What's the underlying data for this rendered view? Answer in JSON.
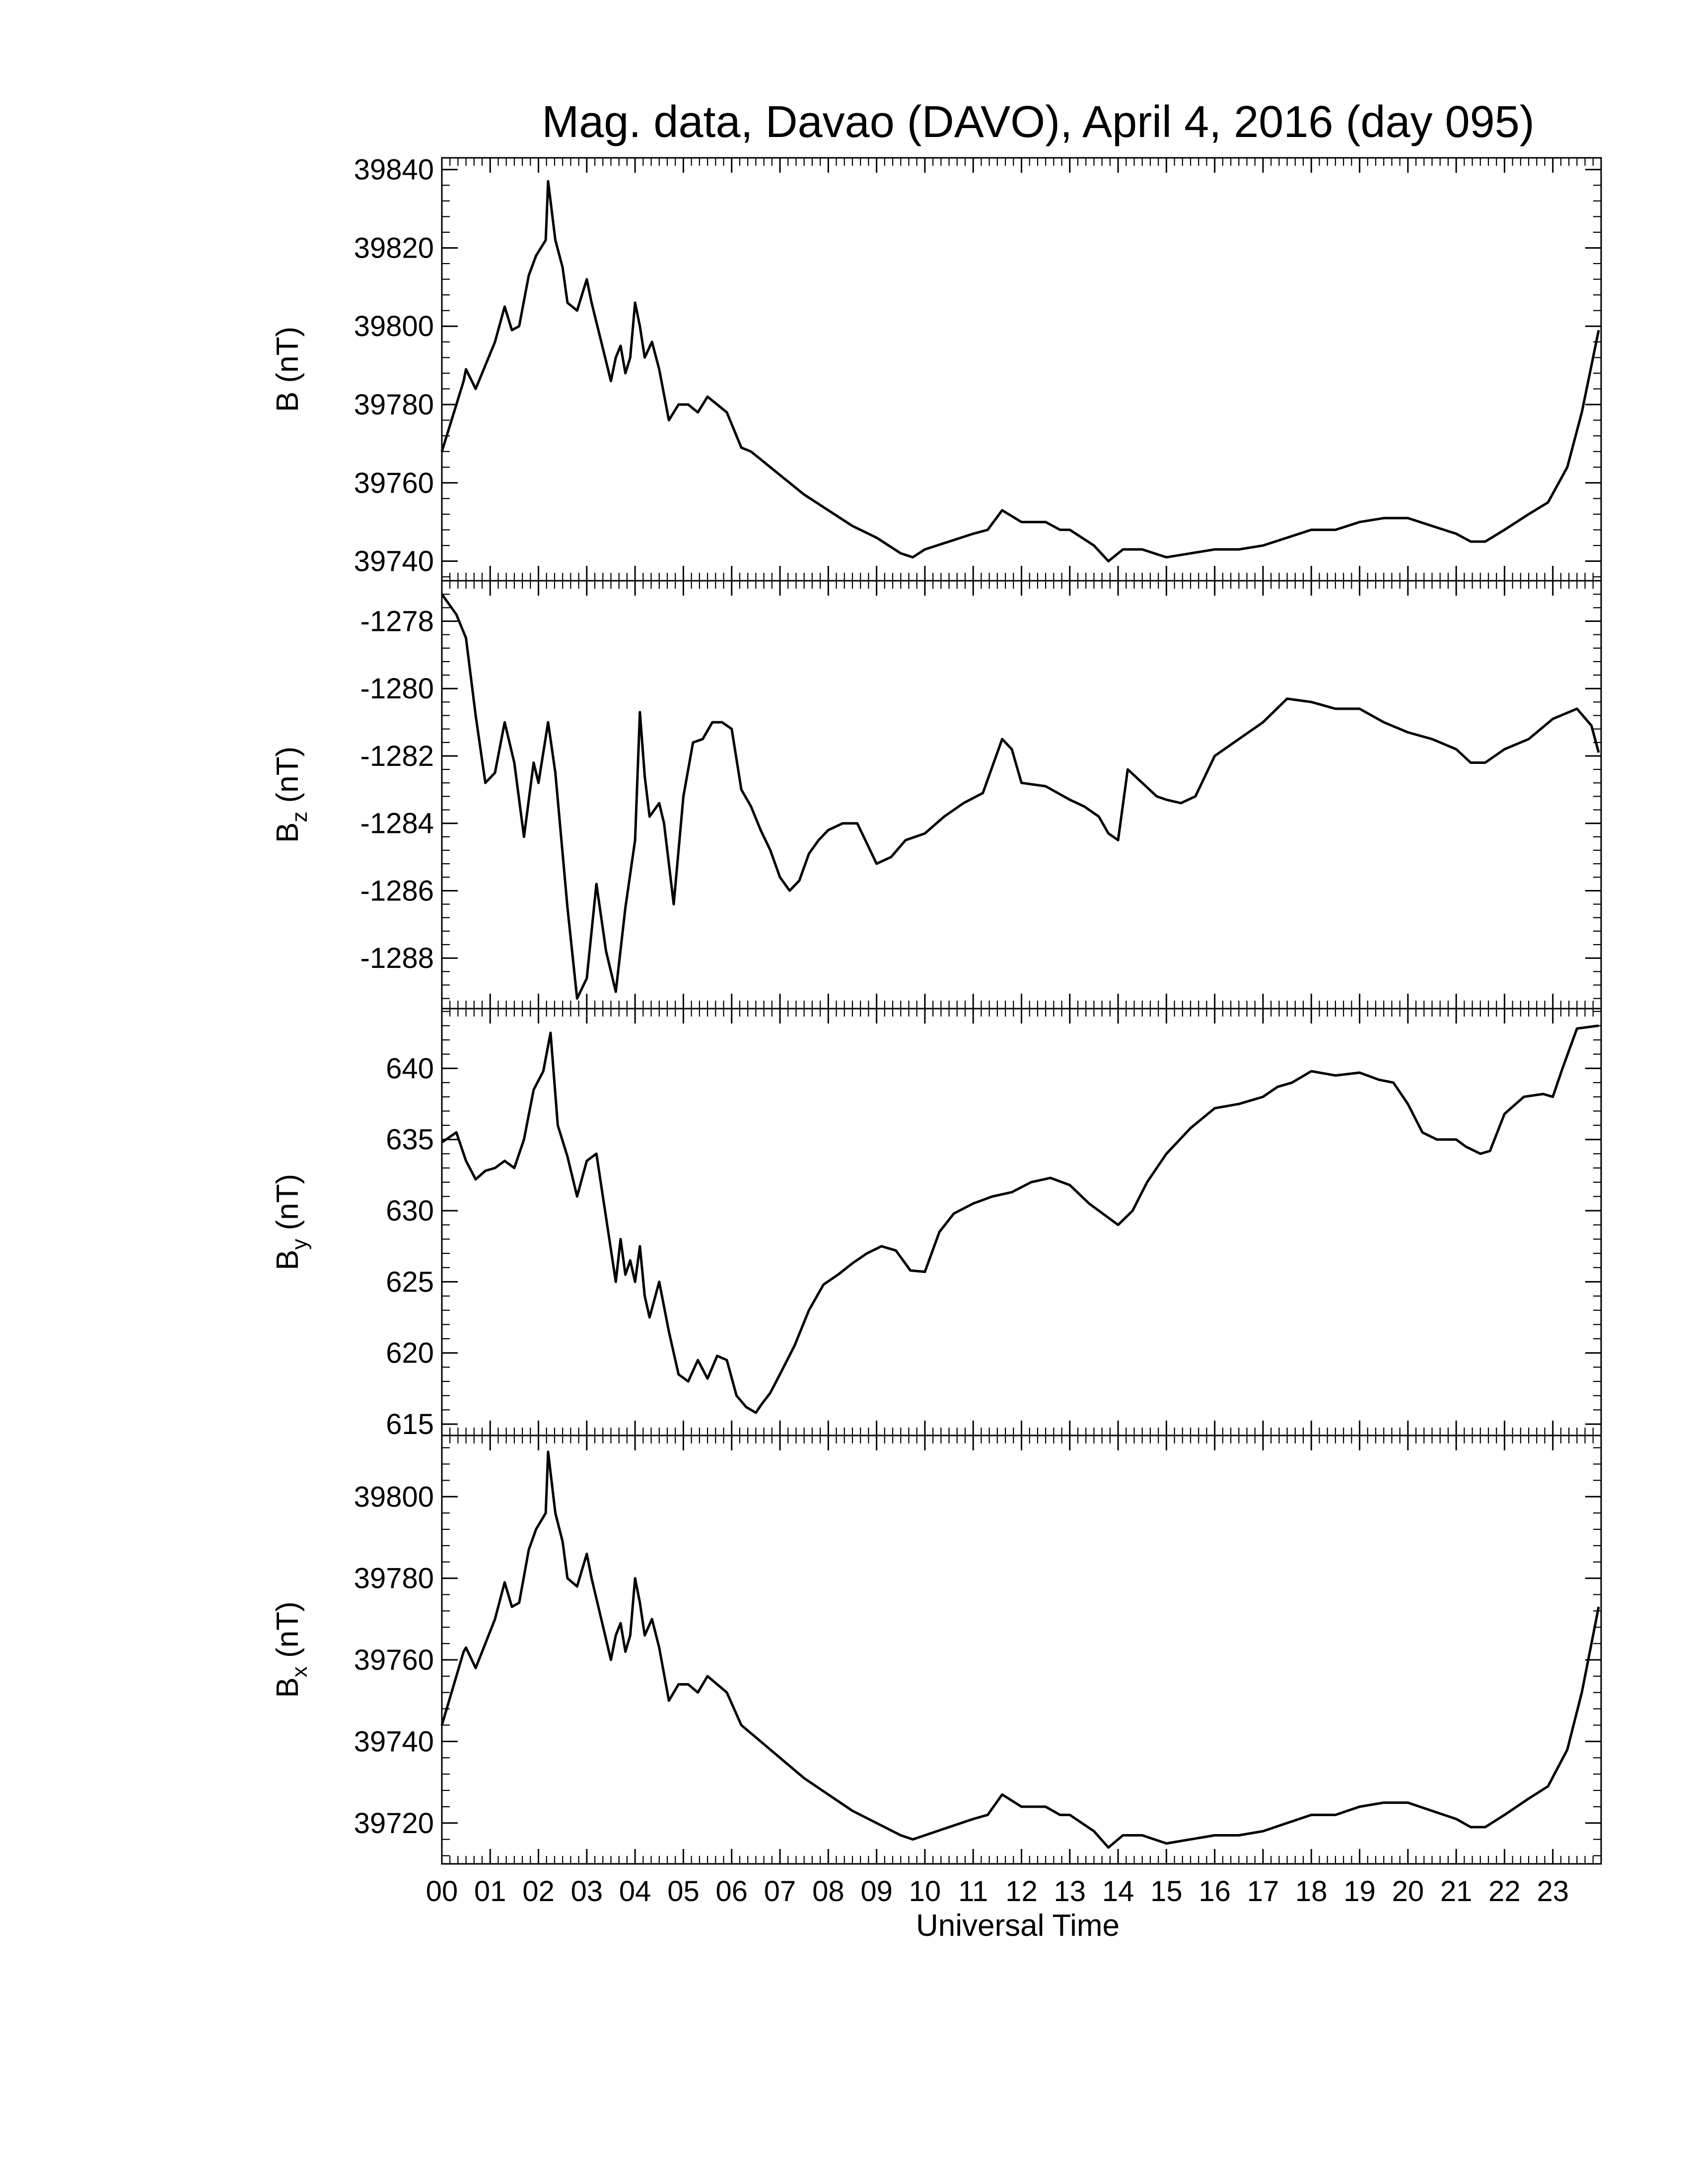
{
  "chart_data": {
    "type": "line",
    "title": "Mag. data, Davao (DAVO), April 4, 2016 (day 095)",
    "xlabel": "Universal Time",
    "x_ticks": [
      "00",
      "01",
      "02",
      "03",
      "04",
      "05",
      "06",
      "07",
      "08",
      "09",
      "10",
      "11",
      "12",
      "13",
      "14",
      "15",
      "16",
      "17",
      "18",
      "19",
      "20",
      "21",
      "22",
      "23"
    ],
    "xlim": [
      0,
      24
    ],
    "panels": [
      {
        "name": "B",
        "ylabel": "B (nT)",
        "ylabel_main": "B (nT)",
        "ylabel_sub": "",
        "ylabel_rest": "",
        "ylim": [
          39735,
          39843
        ],
        "y_ticks": [
          39740,
          39760,
          39780,
          39800,
          39820,
          39840
        ],
        "x": [
          0,
          0.2,
          0.45,
          0.5,
          0.7,
          0.9,
          1.1,
          1.3,
          1.45,
          1.6,
          1.8,
          1.95,
          2.15,
          2.2,
          2.35,
          2.5,
          2.6,
          2.8,
          3.0,
          3.1,
          3.3,
          3.5,
          3.6,
          3.7,
          3.8,
          3.9,
          4.0,
          4.1,
          4.2,
          4.35,
          4.5,
          4.7,
          4.9,
          5.1,
          5.3,
          5.5,
          5.7,
          5.9,
          6.2,
          6.4,
          6.6,
          7.0,
          7.5,
          8.0,
          8.5,
          9.0,
          9.5,
          9.75,
          10.0,
          10.5,
          11.0,
          11.3,
          11.6,
          12.0,
          12.5,
          12.8,
          13.0,
          13.5,
          13.8,
          14.1,
          14.5,
          15.0,
          15.5,
          16.0,
          16.5,
          17.0,
          17.5,
          18.0,
          18.5,
          19.0,
          19.5,
          20.0,
          20.5,
          21.0,
          21.3,
          21.6,
          22.0,
          22.5,
          22.9,
          23.3,
          23.6,
          23.95
        ],
        "y": [
          39768,
          39776,
          39786,
          39789,
          39784,
          39790,
          39796,
          39805,
          39799,
          39800,
          39813,
          39818,
          39822,
          39837,
          39822,
          39815,
          39806,
          39804,
          39812,
          39806,
          39796,
          39786,
          39792,
          39795,
          39788,
          39792,
          39806,
          39800,
          39792,
          39796,
          39789,
          39776,
          39780,
          39780,
          39778,
          39782,
          39780,
          39778,
          39769,
          39768,
          39766,
          39762,
          39757,
          39753,
          39749,
          39746,
          39742,
          39741,
          39743,
          39745,
          39747,
          39748,
          39753,
          39750,
          39750,
          39748,
          39748,
          39744,
          39740,
          39743,
          39743,
          39741,
          39742,
          39743,
          39743,
          39744,
          39746,
          39748,
          39748,
          39750,
          39751,
          39751,
          39749,
          39747,
          39745,
          39745,
          39748,
          39752,
          39755,
          39764,
          39778,
          39799
        ]
      },
      {
        "name": "Bz",
        "ylabel": "Bz (nT)",
        "ylabel_main": "B",
        "ylabel_sub": "z",
        "ylabel_rest": " (nT)",
        "ylim": [
          -1289.5,
          -1276.8
        ],
        "y_ticks": [
          -1278,
          -1280,
          -1282,
          -1284,
          -1286,
          -1288
        ],
        "x": [
          0,
          0.3,
          0.5,
          0.7,
          0.9,
          1.1,
          1.3,
          1.5,
          1.7,
          1.9,
          2.0,
          2.2,
          2.35,
          2.6,
          2.8,
          3.0,
          3.2,
          3.4,
          3.6,
          3.8,
          4.0,
          4.1,
          4.2,
          4.3,
          4.5,
          4.6,
          4.8,
          5.0,
          5.2,
          5.4,
          5.6,
          5.8,
          6.0,
          6.2,
          6.4,
          6.6,
          6.8,
          7.0,
          7.2,
          7.4,
          7.6,
          7.8,
          8.0,
          8.3,
          8.6,
          9.0,
          9.3,
          9.6,
          10.0,
          10.4,
          10.8,
          11.2,
          11.6,
          11.8,
          12.0,
          12.5,
          13.0,
          13.3,
          13.6,
          13.8,
          14.0,
          14.2,
          14.5,
          14.8,
          15.0,
          15.3,
          15.6,
          16.0,
          16.5,
          17.0,
          17.5,
          18.0,
          18.5,
          19.0,
          19.5,
          20.0,
          20.5,
          21.0,
          21.3,
          21.6,
          22.0,
          22.5,
          23.0,
          23.5,
          23.8,
          23.95
        ],
        "y": [
          -1277.2,
          -1277.8,
          -1278.5,
          -1280.8,
          -1282.8,
          -1282.5,
          -1281.0,
          -1282.2,
          -1284.4,
          -1282.2,
          -1282.8,
          -1281.0,
          -1282.5,
          -1286.5,
          -1289.2,
          -1288.6,
          -1285.8,
          -1287.8,
          -1289.0,
          -1286.5,
          -1284.5,
          -1280.7,
          -1282.6,
          -1283.8,
          -1283.4,
          -1284.0,
          -1286.4,
          -1283.2,
          -1281.6,
          -1281.5,
          -1281.0,
          -1281.0,
          -1281.2,
          -1283.0,
          -1283.5,
          -1284.2,
          -1284.8,
          -1285.6,
          -1286.0,
          -1285.7,
          -1284.9,
          -1284.5,
          -1284.2,
          -1284.0,
          -1284.0,
          -1285.2,
          -1285.0,
          -1284.5,
          -1284.3,
          -1283.8,
          -1283.4,
          -1283.1,
          -1281.5,
          -1281.8,
          -1282.8,
          -1282.9,
          -1283.3,
          -1283.5,
          -1283.8,
          -1284.3,
          -1284.5,
          -1282.4,
          -1282.8,
          -1283.2,
          -1283.3,
          -1283.4,
          -1283.2,
          -1282.0,
          -1281.5,
          -1281.0,
          -1280.3,
          -1280.4,
          -1280.6,
          -1280.6,
          -1281.0,
          -1281.3,
          -1281.5,
          -1281.8,
          -1282.2,
          -1282.2,
          -1281.8,
          -1281.5,
          -1280.9,
          -1280.6,
          -1281.1,
          -1281.9
        ]
      },
      {
        "name": "By",
        "ylabel": "By (nT)",
        "ylabel_main": "B",
        "ylabel_sub": "y",
        "ylabel_rest": " (nT)",
        "ylim": [
          614.2,
          644.2
        ],
        "y_ticks": [
          615,
          620,
          625,
          630,
          635,
          640
        ],
        "x": [
          0,
          0.3,
          0.5,
          0.7,
          0.9,
          1.1,
          1.3,
          1.5,
          1.7,
          1.9,
          2.1,
          2.25,
          2.4,
          2.6,
          2.8,
          3.0,
          3.2,
          3.4,
          3.6,
          3.7,
          3.8,
          3.9,
          4.0,
          4.1,
          4.2,
          4.3,
          4.5,
          4.7,
          4.9,
          5.1,
          5.3,
          5.5,
          5.7,
          5.9,
          6.1,
          6.3,
          6.5,
          6.6,
          6.8,
          7.0,
          7.3,
          7.6,
          7.9,
          8.2,
          8.5,
          8.8,
          9.1,
          9.4,
          9.7,
          10.0,
          10.3,
          10.6,
          11.0,
          11.4,
          11.8,
          12.2,
          12.6,
          13.0,
          13.4,
          13.8,
          14.0,
          14.3,
          14.6,
          15.0,
          15.5,
          16.0,
          16.5,
          17.0,
          17.3,
          17.6,
          18.0,
          18.5,
          19.0,
          19.4,
          19.7,
          20.0,
          20.3,
          20.6,
          21.0,
          21.2,
          21.5,
          21.7,
          22.0,
          22.4,
          22.8,
          23.0,
          23.2,
          23.5,
          23.95
        ],
        "y": [
          634.8,
          635.5,
          633.5,
          632.2,
          632.8,
          633.0,
          633.5,
          633.0,
          635.0,
          638.5,
          639.8,
          642.5,
          636.0,
          633.8,
          631.0,
          633.5,
          634.0,
          629.5,
          625.0,
          628.0,
          625.5,
          626.5,
          625.0,
          627.5,
          624.0,
          622.5,
          625.0,
          621.5,
          618.5,
          618.0,
          619.5,
          618.2,
          619.8,
          619.5,
          617.0,
          616.2,
          615.8,
          616.3,
          617.2,
          618.5,
          620.5,
          623.0,
          624.8,
          625.5,
          626.3,
          627.0,
          627.5,
          627.2,
          625.8,
          625.7,
          628.5,
          629.8,
          630.5,
          631.0,
          631.3,
          632.0,
          632.3,
          631.8,
          630.5,
          629.5,
          629.0,
          630.0,
          632.0,
          634.0,
          635.8,
          637.2,
          637.5,
          638.0,
          638.7,
          639.0,
          639.8,
          639.5,
          639.7,
          639.2,
          639.0,
          637.5,
          635.5,
          635.0,
          635.0,
          634.5,
          634.0,
          634.2,
          636.8,
          638.0,
          638.2,
          638.0,
          640.0,
          642.8,
          643.0
        ]
      },
      {
        "name": "Bx",
        "ylabel": "Bx (nT)",
        "ylabel_main": "B",
        "ylabel_sub": "x",
        "ylabel_rest": " (nT)",
        "ylim": [
          39710,
          39815
        ],
        "y_ticks": [
          39720,
          39740,
          39760,
          39780,
          39800
        ],
        "x": [
          0,
          0.2,
          0.45,
          0.5,
          0.7,
          0.9,
          1.1,
          1.3,
          1.45,
          1.6,
          1.8,
          1.95,
          2.15,
          2.2,
          2.35,
          2.5,
          2.6,
          2.8,
          3.0,
          3.1,
          3.3,
          3.5,
          3.6,
          3.7,
          3.8,
          3.9,
          4.0,
          4.1,
          4.2,
          4.35,
          4.5,
          4.7,
          4.9,
          5.1,
          5.3,
          5.5,
          5.7,
          5.9,
          6.2,
          6.4,
          6.6,
          7.0,
          7.5,
          8.0,
          8.5,
          9.0,
          9.5,
          9.75,
          10.0,
          10.5,
          11.0,
          11.3,
          11.6,
          12.0,
          12.5,
          12.8,
          13.0,
          13.5,
          13.8,
          14.1,
          14.5,
          15.0,
          15.5,
          16.0,
          16.5,
          17.0,
          17.5,
          18.0,
          18.5,
          19.0,
          19.5,
          20.0,
          20.5,
          21.0,
          21.3,
          21.6,
          22.0,
          22.5,
          22.9,
          23.3,
          23.6,
          23.95
        ],
        "y": [
          39744,
          39752,
          39762,
          39763,
          39758,
          39764,
          39770,
          39779,
          39773,
          39774,
          39787,
          39792,
          39796,
          39811,
          39796,
          39789,
          39780,
          39778,
          39786,
          39780,
          39770,
          39760,
          39766,
          39769,
          39762,
          39766,
          39780,
          39774,
          39766,
          39770,
          39763,
          39750,
          39754,
          39754,
          39752,
          39756,
          39754,
          39752,
          39744,
          39742,
          39740,
          39736,
          39731,
          39727,
          39723,
          39720,
          39717,
          39716,
          39717,
          39719,
          39721,
          39722,
          39727,
          39724,
          39724,
          39722,
          39722,
          39718,
          39714,
          39717,
          39717,
          39715,
          39716,
          39717,
          39717,
          39718,
          39720,
          39722,
          39722,
          39724,
          39725,
          39725,
          39723,
          39721,
          39719,
          39719,
          39722,
          39726,
          39729,
          39738,
          39752,
          39773
        ]
      }
    ]
  }
}
